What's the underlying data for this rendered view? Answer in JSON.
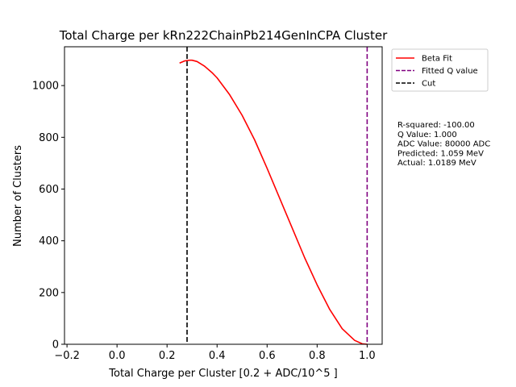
{
  "chart_data": {
    "type": "line",
    "title": "Total Charge per kRn222ChainPb214GenInCPA Cluster",
    "xlabel": "Total Charge per Cluster [0.2 + ADC/10^5 ]",
    "ylabel": "Number of Clusters",
    "xlim": [
      -0.21,
      1.06
    ],
    "ylim": [
      0,
      1150
    ],
    "xticks": [
      -0.2,
      0.0,
      0.2,
      0.4,
      0.6,
      0.8,
      1.0
    ],
    "xtick_labels": [
      "−0.2",
      "0.0",
      "0.2",
      "0.4",
      "0.6",
      "0.8",
      "1.0"
    ],
    "yticks": [
      0,
      200,
      400,
      600,
      800,
      1000
    ],
    "ytick_labels": [
      "0",
      "200",
      "400",
      "600",
      "800",
      "1000"
    ],
    "grid": false,
    "legend_position": "outside-top-right",
    "series": [
      {
        "name": "Beta Fit",
        "color": "#ff0000",
        "style": "solid",
        "x": [
          0.25,
          0.27,
          0.29,
          0.3,
          0.32,
          0.35,
          0.38,
          0.4,
          0.45,
          0.5,
          0.55,
          0.6,
          0.65,
          0.7,
          0.75,
          0.8,
          0.85,
          0.9,
          0.95,
          0.98,
          1.0
        ],
        "y": [
          1087,
          1095,
          1098,
          1098,
          1093,
          1075,
          1050,
          1030,
          965,
          885,
          790,
          680,
          565,
          450,
          335,
          230,
          135,
          60,
          15,
          2,
          0
        ]
      }
    ],
    "vlines": [
      {
        "name": "Fitted Q value",
        "x": 1.0,
        "color": "#800080",
        "style": "dashed"
      },
      {
        "name": "Cut",
        "x": 0.28,
        "color": "#000000",
        "style": "dashed"
      }
    ],
    "annotations": [
      "R-squared: -100.00",
      "Q Value: 1.000",
      "ADC Value: 80000 ADC",
      "Predicted: 1.059 MeV",
      "Actual: 1.0189 MeV"
    ]
  }
}
